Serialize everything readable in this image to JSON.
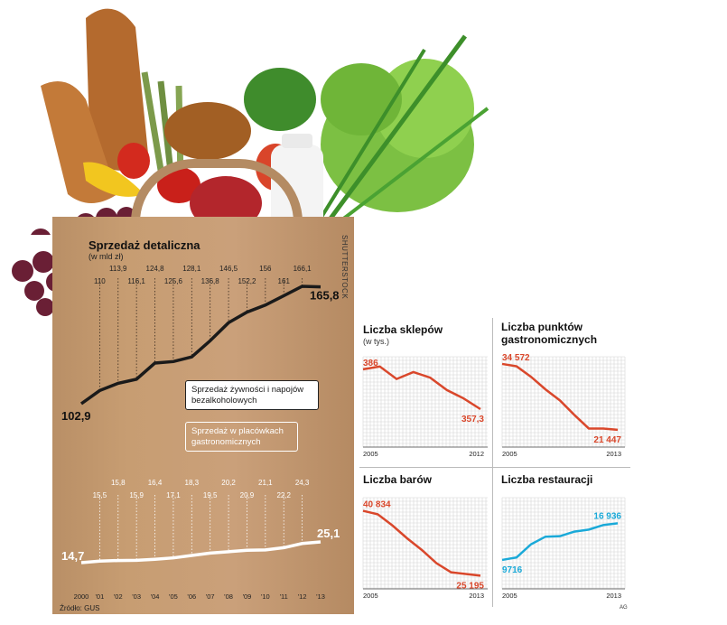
{
  "credit": "SHUTTERSTOCK",
  "source": "Źródło: GUS",
  "author_mark": "AG",
  "bag_chart": {
    "title": "Sprzedaż detaliczna",
    "unit": "(w mld zł)",
    "callout_food": "Sprzedaż żywności i napojów bezalkoholowych",
    "callout_gastro": "Sprzedaż w placówkach gastronomicznych",
    "x_labels": [
      "2000",
      "'01",
      "'02",
      "'03",
      "'04",
      "'05",
      "'06",
      "'07",
      "'08",
      "'09",
      "'10",
      "'11",
      "'12",
      "'13"
    ]
  },
  "chart_data": [
    {
      "type": "line",
      "title": "Sprzedaż detaliczna",
      "ylabel": "(w mld zł)",
      "x": [
        "2000",
        "'01",
        "'02",
        "'03",
        "'04",
        "'05",
        "'06",
        "'07",
        "'08",
        "'09",
        "'10",
        "'11",
        "'12",
        "'13"
      ],
      "series": [
        {
          "name": "Sprzedaż żywności i napojów bezalkoholowych",
          "values": [
            102.9,
            110,
            113.9,
            116.1,
            124.8,
            125.6,
            128.1,
            136.8,
            146.5,
            152.2,
            156,
            161,
            166.1,
            165.8
          ],
          "labels": [
            "102,9",
            "110",
            "113,9",
            "116,1",
            "124,8",
            "125,6",
            "128,1",
            "136,8",
            "146,5",
            "152,2",
            "156",
            "161",
            "166,1",
            "165,8"
          ]
        },
        {
          "name": "Sprzedaż w placówkach gastronomicznych",
          "values": [
            14.7,
            15.5,
            15.8,
            15.9,
            16.4,
            17.1,
            18.3,
            19.5,
            20.2,
            20.9,
            21.1,
            22.2,
            24.3,
            25.1
          ],
          "labels": [
            "14,7",
            "15,5",
            "15,8",
            "15,9",
            "16,4",
            "17,1",
            "18,3",
            "19,5",
            "20,2",
            "20,9",
            "21,1",
            "22,2",
            "24,3",
            "25,1"
          ]
        }
      ],
      "color_food": "#1a1a1a",
      "color_gastro": "#ffffff"
    },
    {
      "type": "line",
      "title": "Liczba sklepów",
      "ylabel": "(w tys.)",
      "x_start": "2005",
      "x_end": "2012",
      "x": [
        2005,
        2006,
        2007,
        2008,
        2009,
        2010,
        2011,
        2012
      ],
      "values": [
        386,
        388,
        379,
        384,
        380,
        371,
        365,
        357.3
      ],
      "start_label": "386",
      "end_label": "357,3",
      "color": "#d9472b"
    },
    {
      "type": "line",
      "title": "Liczba punktów gastronomicznych",
      "x_start": "2005",
      "x_end": "2013",
      "x": [
        2005,
        2006,
        2007,
        2008,
        2009,
        2010,
        2011,
        2012,
        2013
      ],
      "values": [
        34572,
        34100,
        32000,
        29500,
        27300,
        24400,
        21700,
        21700,
        21447
      ],
      "start_label": "34 572",
      "end_label": "21 447",
      "color": "#d9472b"
    },
    {
      "type": "line",
      "title": "Liczba barów",
      "x_start": "2005",
      "x_end": "2013",
      "x": [
        2005,
        2006,
        2007,
        2008,
        2009,
        2010,
        2011,
        2012,
        2013
      ],
      "values": [
        40834,
        40000,
        37300,
        34200,
        31400,
        28200,
        26000,
        25600,
        25195
      ],
      "start_label": "40 834",
      "end_label": "25 195",
      "color": "#d9472b"
    },
    {
      "type": "line",
      "title": "Liczba restauracji",
      "x_start": "2005",
      "x_end": "2013",
      "x": [
        2005,
        2006,
        2007,
        2008,
        2009,
        2010,
        2011,
        2012,
        2013
      ],
      "values": [
        9716,
        10200,
        12800,
        14300,
        14400,
        15300,
        15700,
        16600,
        16936
      ],
      "start_label": "9716",
      "end_label": "16 936",
      "color": "#1aa9d8"
    }
  ]
}
